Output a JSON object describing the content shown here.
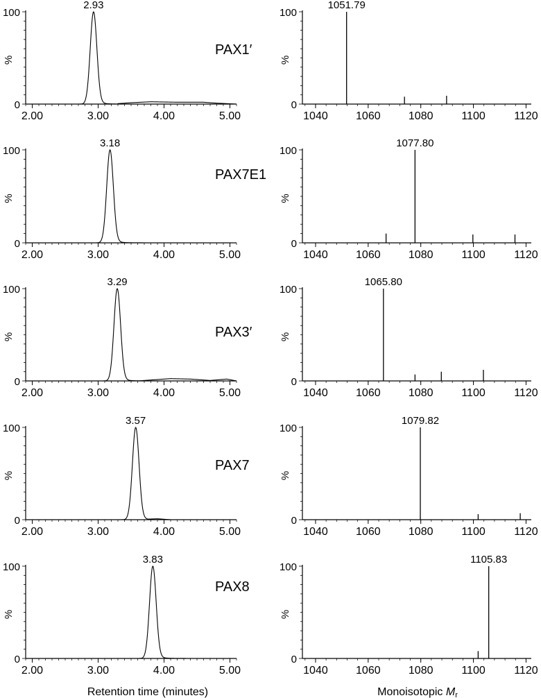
{
  "xlabel_left": "Retention time (minutes)",
  "xlabel_right_prefix": "Monoisotopic ",
  "xlabel_right_italic": "M",
  "xlabel_right_sub": "r",
  "chart_data": [
    {
      "label": "PAX1′",
      "chromatogram": {
        "type": "line",
        "xlim": [
          1.9,
          5.1
        ],
        "ylim": [
          0,
          100
        ],
        "xticks": [
          "2.00",
          "3.00",
          "4.00",
          "5.00"
        ],
        "yticks": [
          "0",
          "100"
        ],
        "ylabel": "%",
        "peak_label": "2.93",
        "peak_rt": 2.93,
        "peak_width": 0.05,
        "baseline": [
          [
            3.3,
            0.5
          ],
          [
            3.5,
            1.5
          ],
          [
            3.8,
            2.5
          ],
          [
            4.2,
            2
          ],
          [
            4.6,
            2
          ],
          [
            4.8,
            1
          ],
          [
            5.1,
            0
          ]
        ]
      },
      "spectrum": {
        "type": "bar",
        "xlim": [
          1035,
          1122
        ],
        "ylim": [
          0,
          100
        ],
        "xticks": [
          "1040",
          "1060",
          "1080",
          "1100",
          "1120"
        ],
        "yticks": [
          "0",
          "100"
        ],
        "ylabel": "%",
        "peak_label": "1051.79",
        "peaks": [
          {
            "mz": 1051.79,
            "intensity": 100
          },
          {
            "mz": 1073.8,
            "intensity": 8
          },
          {
            "mz": 1089.8,
            "intensity": 9
          }
        ]
      }
    },
    {
      "label": "PAX7E1",
      "chromatogram": {
        "type": "line",
        "xlim": [
          1.9,
          5.1
        ],
        "ylim": [
          0,
          100
        ],
        "xticks": [
          "2.00",
          "3.00",
          "4.00",
          "5.00"
        ],
        "yticks": [
          "0",
          "100"
        ],
        "ylabel": "%",
        "peak_label": "3.18",
        "peak_rt": 3.18,
        "peak_width": 0.05,
        "baseline": []
      },
      "spectrum": {
        "type": "bar",
        "xlim": [
          1035,
          1122
        ],
        "ylim": [
          0,
          100
        ],
        "xticks": [
          "1040",
          "1060",
          "1080",
          "1100",
          "1120"
        ],
        "yticks": [
          "0",
          "100"
        ],
        "ylabel": "%",
        "peak_label": "1077.80",
        "peaks": [
          {
            "mz": 1066.8,
            "intensity": 10
          },
          {
            "mz": 1077.8,
            "intensity": 100
          },
          {
            "mz": 1099.8,
            "intensity": 9
          },
          {
            "mz": 1115.8,
            "intensity": 9
          }
        ]
      }
    },
    {
      "label": "PAX3′",
      "chromatogram": {
        "type": "line",
        "xlim": [
          1.9,
          5.1
        ],
        "ylim": [
          0,
          100
        ],
        "xticks": [
          "2.00",
          "3.00",
          "4.00",
          "5.00"
        ],
        "yticks": [
          "0",
          "100"
        ],
        "ylabel": "%",
        "peak_label": "3.29",
        "peak_rt": 3.29,
        "peak_width": 0.05,
        "baseline": [
          [
            3.6,
            0
          ],
          [
            3.9,
            1.5
          ],
          [
            4.1,
            2.5
          ],
          [
            4.4,
            2
          ],
          [
            4.7,
            0.5
          ],
          [
            4.95,
            2
          ],
          [
            5.1,
            0
          ]
        ]
      },
      "spectrum": {
        "type": "bar",
        "xlim": [
          1035,
          1122
        ],
        "ylim": [
          0,
          100
        ],
        "xticks": [
          "1040",
          "1060",
          "1080",
          "1100",
          "1120"
        ],
        "yticks": [
          "0",
          "100"
        ],
        "ylabel": "%",
        "peak_label": "1065.80",
        "peaks": [
          {
            "mz": 1065.8,
            "intensity": 100
          },
          {
            "mz": 1077.8,
            "intensity": 7
          },
          {
            "mz": 1087.8,
            "intensity": 10
          },
          {
            "mz": 1103.8,
            "intensity": 12
          }
        ]
      }
    },
    {
      "label": "PAX7",
      "chromatogram": {
        "type": "line",
        "xlim": [
          1.9,
          5.1
        ],
        "ylim": [
          0,
          100
        ],
        "xticks": [
          "2.00",
          "3.00",
          "4.00",
          "5.00"
        ],
        "yticks": [
          "0",
          "100"
        ],
        "ylabel": "%",
        "peak_label": "3.57",
        "peak_rt": 3.57,
        "peak_width": 0.05,
        "baseline": [
          [
            3.7,
            0.5
          ],
          [
            3.9,
            1
          ],
          [
            4.1,
            0
          ]
        ]
      },
      "spectrum": {
        "type": "bar",
        "xlim": [
          1035,
          1122
        ],
        "ylim": [
          0,
          100
        ],
        "xticks": [
          "1040",
          "1060",
          "1080",
          "1100",
          "1120"
        ],
        "yticks": [
          "0",
          "100"
        ],
        "ylabel": "%",
        "peak_label": "1079.82",
        "peaks": [
          {
            "mz": 1079.82,
            "intensity": 100
          },
          {
            "mz": 1101.8,
            "intensity": 6
          },
          {
            "mz": 1117.8,
            "intensity": 7
          }
        ]
      }
    },
    {
      "label": "PAX8",
      "chromatogram": {
        "type": "line",
        "xlim": [
          1.9,
          5.1
        ],
        "ylim": [
          0,
          100
        ],
        "xticks": [
          "2.00",
          "3.00",
          "4.00",
          "5.00"
        ],
        "yticks": [
          "0",
          "100"
        ],
        "ylabel": "%",
        "peak_label": "3.83",
        "peak_rt": 3.83,
        "peak_width": 0.05,
        "baseline": []
      },
      "spectrum": {
        "type": "bar",
        "xlim": [
          1035,
          1122
        ],
        "ylim": [
          0,
          100
        ],
        "xticks": [
          "1040",
          "1060",
          "1080",
          "1100",
          "1120"
        ],
        "yticks": [
          "0",
          "100"
        ],
        "ylabel": "%",
        "peak_label": "1105.83",
        "peaks": [
          {
            "mz": 1101.8,
            "intensity": 8
          },
          {
            "mz": 1105.83,
            "intensity": 100
          }
        ]
      }
    }
  ]
}
